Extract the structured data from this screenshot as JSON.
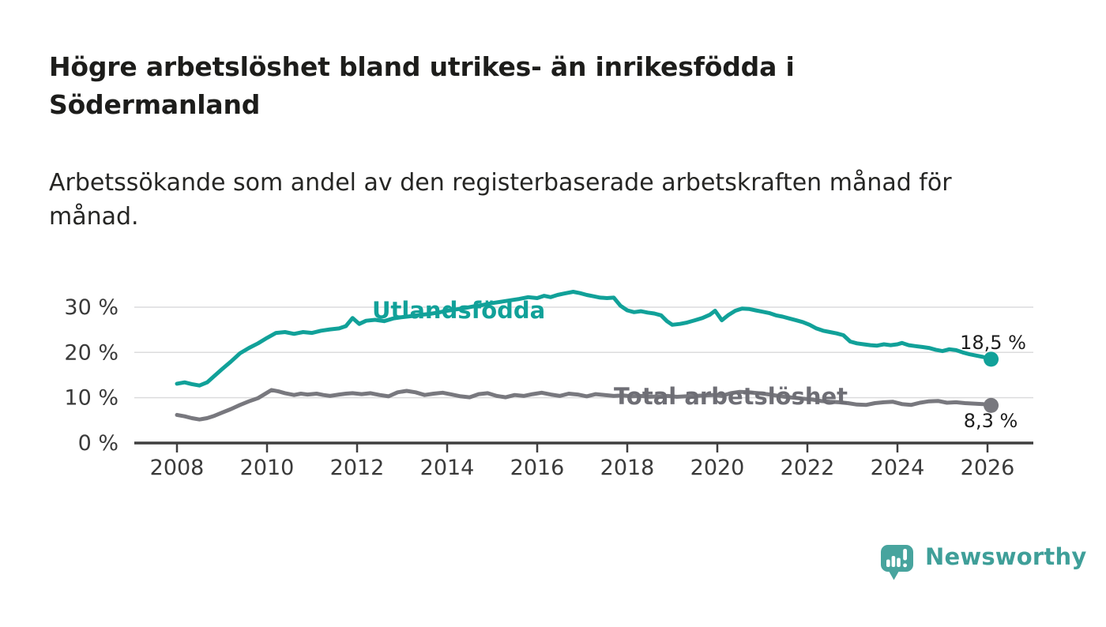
{
  "header": {
    "title_line1": "Högre arbetslöshet bland utrikes- än inrikesfödda i",
    "title_line2": "Södermanland",
    "subtitle_line1": "Arbetssökande som andel av den registerbaserade arbetskraften månad för",
    "subtitle_line2": "månad."
  },
  "chart_data": {
    "type": "line",
    "x_axis": {
      "ticks": [
        2008,
        2010,
        2012,
        2014,
        2016,
        2018,
        2020,
        2022,
        2024,
        2026
      ],
      "tick_labels": [
        "2008",
        "2010",
        "2012",
        "2014",
        "2016",
        "2018",
        "2020",
        "2022",
        "2024",
        "2026"
      ],
      "range": [
        2007.05,
        2027.0
      ]
    },
    "y_axis": {
      "ticks": [
        0,
        10,
        20,
        30
      ],
      "tick_labels": [
        "0 %",
        "10 %",
        "20 %",
        "30 %"
      ],
      "gridlines": [
        10,
        20,
        30
      ],
      "range": [
        0,
        35
      ]
    },
    "grid": "horizontal-only",
    "legend_position": "inline-labels",
    "series": [
      {
        "name": "Utlandsfödda",
        "label": "Utlandsfödda",
        "color": "#11a199",
        "end_label": "18,5 %",
        "end_value": 18.5,
        "points": [
          [
            2008.0,
            13.1
          ],
          [
            2008.17,
            13.4
          ],
          [
            2008.33,
            13.0
          ],
          [
            2008.5,
            12.7
          ],
          [
            2008.67,
            13.4
          ],
          [
            2008.83,
            14.8
          ],
          [
            2009.0,
            16.3
          ],
          [
            2009.2,
            18.0
          ],
          [
            2009.4,
            19.8
          ],
          [
            2009.6,
            21.0
          ],
          [
            2009.8,
            22.0
          ],
          [
            2010.0,
            23.2
          ],
          [
            2010.2,
            24.3
          ],
          [
            2010.4,
            24.5
          ],
          [
            2010.6,
            24.1
          ],
          [
            2010.8,
            24.5
          ],
          [
            2011.0,
            24.3
          ],
          [
            2011.2,
            24.8
          ],
          [
            2011.4,
            25.1
          ],
          [
            2011.6,
            25.3
          ],
          [
            2011.75,
            25.8
          ],
          [
            2011.9,
            27.6
          ],
          [
            2012.05,
            26.3
          ],
          [
            2012.2,
            27.0
          ],
          [
            2012.4,
            27.2
          ],
          [
            2012.6,
            26.9
          ],
          [
            2012.8,
            27.5
          ],
          [
            2013.0,
            27.8
          ],
          [
            2013.2,
            28.0
          ],
          [
            2013.4,
            28.3
          ],
          [
            2013.6,
            28.5
          ],
          [
            2013.8,
            28.8
          ],
          [
            2014.0,
            29.2
          ],
          [
            2014.2,
            29.5
          ],
          [
            2014.4,
            29.8
          ],
          [
            2014.6,
            30.2
          ],
          [
            2014.8,
            30.5
          ],
          [
            2015.0,
            30.9
          ],
          [
            2015.2,
            31.2
          ],
          [
            2015.4,
            31.5
          ],
          [
            2015.6,
            31.8
          ],
          [
            2015.8,
            32.2
          ],
          [
            2016.0,
            32.0
          ],
          [
            2016.15,
            32.5
          ],
          [
            2016.3,
            32.2
          ],
          [
            2016.45,
            32.7
          ],
          [
            2016.6,
            33.0
          ],
          [
            2016.8,
            33.4
          ],
          [
            2016.95,
            33.1
          ],
          [
            2017.1,
            32.7
          ],
          [
            2017.25,
            32.4
          ],
          [
            2017.4,
            32.1
          ],
          [
            2017.55,
            32.0
          ],
          [
            2017.7,
            32.1
          ],
          [
            2017.85,
            30.3
          ],
          [
            2018.0,
            29.3
          ],
          [
            2018.15,
            28.9
          ],
          [
            2018.3,
            29.1
          ],
          [
            2018.45,
            28.8
          ],
          [
            2018.6,
            28.6
          ],
          [
            2018.75,
            28.2
          ],
          [
            2018.88,
            26.9
          ],
          [
            2019.0,
            26.1
          ],
          [
            2019.17,
            26.3
          ],
          [
            2019.33,
            26.6
          ],
          [
            2019.5,
            27.1
          ],
          [
            2019.67,
            27.6
          ],
          [
            2019.83,
            28.3
          ],
          [
            2019.95,
            29.2
          ],
          [
            2020.1,
            27.1
          ],
          [
            2020.25,
            28.3
          ],
          [
            2020.4,
            29.2
          ],
          [
            2020.55,
            29.7
          ],
          [
            2020.7,
            29.6
          ],
          [
            2020.85,
            29.3
          ],
          [
            2021.0,
            29.0
          ],
          [
            2021.15,
            28.7
          ],
          [
            2021.3,
            28.2
          ],
          [
            2021.45,
            27.9
          ],
          [
            2021.6,
            27.5
          ],
          [
            2021.75,
            27.1
          ],
          [
            2021.9,
            26.7
          ],
          [
            2022.05,
            26.1
          ],
          [
            2022.2,
            25.3
          ],
          [
            2022.35,
            24.8
          ],
          [
            2022.5,
            24.5
          ],
          [
            2022.65,
            24.2
          ],
          [
            2022.8,
            23.8
          ],
          [
            2022.95,
            22.4
          ],
          [
            2023.1,
            22.0
          ],
          [
            2023.25,
            21.8
          ],
          [
            2023.4,
            21.6
          ],
          [
            2023.55,
            21.5
          ],
          [
            2023.7,
            21.8
          ],
          [
            2023.85,
            21.6
          ],
          [
            2024.0,
            21.8
          ],
          [
            2024.1,
            22.1
          ],
          [
            2024.25,
            21.6
          ],
          [
            2024.4,
            21.4
          ],
          [
            2024.55,
            21.2
          ],
          [
            2024.7,
            21.0
          ],
          [
            2024.85,
            20.6
          ],
          [
            2025.0,
            20.3
          ],
          [
            2025.15,
            20.7
          ],
          [
            2025.3,
            20.5
          ],
          [
            2025.45,
            20.0
          ],
          [
            2025.6,
            19.6
          ],
          [
            2025.75,
            19.3
          ],
          [
            2025.9,
            19.0
          ],
          [
            2026.08,
            18.5
          ]
        ]
      },
      {
        "name": "Total arbetslöshet",
        "label": "Total arbetslöshet",
        "color": "#78787e",
        "end_label": "8,3 %",
        "end_value": 8.3,
        "points": [
          [
            2008.0,
            6.2
          ],
          [
            2008.17,
            5.9
          ],
          [
            2008.33,
            5.5
          ],
          [
            2008.5,
            5.2
          ],
          [
            2008.67,
            5.5
          ],
          [
            2008.83,
            6.0
          ],
          [
            2009.0,
            6.7
          ],
          [
            2009.2,
            7.5
          ],
          [
            2009.4,
            8.4
          ],
          [
            2009.6,
            9.2
          ],
          [
            2009.8,
            9.9
          ],
          [
            2010.0,
            11.1
          ],
          [
            2010.1,
            11.7
          ],
          [
            2010.25,
            11.4
          ],
          [
            2010.4,
            11.0
          ],
          [
            2010.6,
            10.6
          ],
          [
            2010.75,
            10.9
          ],
          [
            2010.9,
            10.7
          ],
          [
            2011.1,
            10.9
          ],
          [
            2011.25,
            10.6
          ],
          [
            2011.4,
            10.4
          ],
          [
            2011.6,
            10.7
          ],
          [
            2011.75,
            10.9
          ],
          [
            2011.9,
            11.0
          ],
          [
            2012.1,
            10.8
          ],
          [
            2012.3,
            11.0
          ],
          [
            2012.5,
            10.6
          ],
          [
            2012.7,
            10.3
          ],
          [
            2012.9,
            11.2
          ],
          [
            2013.1,
            11.5
          ],
          [
            2013.3,
            11.2
          ],
          [
            2013.5,
            10.6
          ],
          [
            2013.7,
            10.9
          ],
          [
            2013.9,
            11.1
          ],
          [
            2014.1,
            10.7
          ],
          [
            2014.3,
            10.3
          ],
          [
            2014.5,
            10.1
          ],
          [
            2014.7,
            10.8
          ],
          [
            2014.9,
            11.0
          ],
          [
            2015.1,
            10.4
          ],
          [
            2015.3,
            10.1
          ],
          [
            2015.5,
            10.6
          ],
          [
            2015.7,
            10.4
          ],
          [
            2015.9,
            10.8
          ],
          [
            2016.1,
            11.1
          ],
          [
            2016.3,
            10.7
          ],
          [
            2016.5,
            10.4
          ],
          [
            2016.7,
            10.9
          ],
          [
            2016.9,
            10.7
          ],
          [
            2017.1,
            10.3
          ],
          [
            2017.3,
            10.8
          ],
          [
            2017.5,
            10.6
          ],
          [
            2017.7,
            10.4
          ],
          [
            2017.9,
            10.5
          ],
          [
            2018.1,
            10.3
          ],
          [
            2018.3,
            10.4
          ],
          [
            2018.5,
            10.2
          ],
          [
            2018.7,
            10.3
          ],
          [
            2018.9,
            10.4
          ],
          [
            2019.1,
            10.2
          ],
          [
            2019.3,
            10.3
          ],
          [
            2019.5,
            10.4
          ],
          [
            2019.7,
            10.5
          ],
          [
            2019.9,
            10.6
          ],
          [
            2020.1,
            10.4
          ],
          [
            2020.3,
            11.0
          ],
          [
            2020.5,
            11.3
          ],
          [
            2020.7,
            11.2
          ],
          [
            2020.9,
            11.0
          ],
          [
            2021.1,
            10.8
          ],
          [
            2021.3,
            10.5
          ],
          [
            2021.5,
            10.2
          ],
          [
            2021.7,
            10.0
          ],
          [
            2021.9,
            9.8
          ],
          [
            2022.1,
            9.6
          ],
          [
            2022.3,
            9.3
          ],
          [
            2022.5,
            9.1
          ],
          [
            2022.7,
            9.0
          ],
          [
            2022.9,
            8.8
          ],
          [
            2023.1,
            8.5
          ],
          [
            2023.3,
            8.4
          ],
          [
            2023.5,
            8.8
          ],
          [
            2023.7,
            9.0
          ],
          [
            2023.9,
            9.1
          ],
          [
            2024.1,
            8.6
          ],
          [
            2024.3,
            8.4
          ],
          [
            2024.5,
            8.9
          ],
          [
            2024.7,
            9.2
          ],
          [
            2024.9,
            9.3
          ],
          [
            2025.1,
            8.9
          ],
          [
            2025.3,
            9.0
          ],
          [
            2025.5,
            8.8
          ],
          [
            2025.7,
            8.7
          ],
          [
            2025.9,
            8.6
          ],
          [
            2026.08,
            8.3
          ]
        ]
      }
    ]
  },
  "footer": {
    "brand": "Newsworthy"
  },
  "colors": {
    "series_foreign_born": "#11a199",
    "series_total": "#78787e",
    "axis_line": "#3f3f3f",
    "gridline": "#dcdcdd",
    "title_text": "#1d1d1b",
    "brand_teal": "#3f9f99",
    "brand_bubble": "#48a49e"
  }
}
